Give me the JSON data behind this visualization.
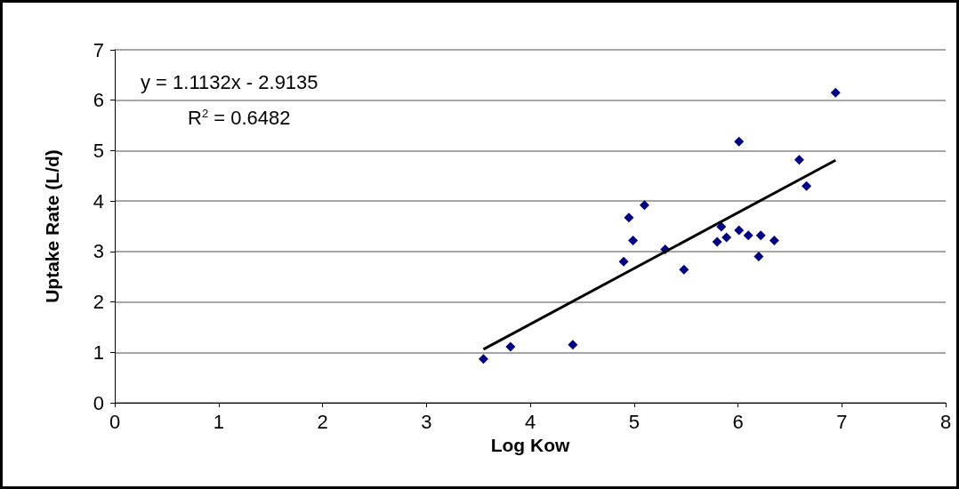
{
  "chart_data": {
    "type": "scatter",
    "xlabel": "Log Kow",
    "ylabel": "Uptake Rate (L/d)",
    "annotations": [
      "y = 1.1132x - 2.9135",
      "R$^{2}$ = 0.6482"
    ],
    "series": [
      {
        "color": "#000080",
        "marker": "diamond",
        "x": [
          3.55,
          3.81,
          4.41,
          4.9,
          4.95,
          4.99,
          5.1,
          5.3,
          5.48,
          5.8,
          5.84,
          5.89,
          6.01,
          6.01,
          6.1,
          6.22,
          6.2,
          6.35,
          6.59,
          6.66,
          6.94
        ],
        "values": [
          0.87,
          1.11,
          1.15,
          2.8,
          3.67,
          3.22,
          3.92,
          3.04,
          2.64,
          3.19,
          3.49,
          3.28,
          5.18,
          3.42,
          3.32,
          3.32,
          2.9,
          3.22,
          4.82,
          4.3,
          6.15
        ]
      },
      {
        "type": "line",
        "color": "#000000",
        "marker": "none",
        "x": [
          3.55,
          6.94
        ],
        "values": [
          1.06,
          4.81
        ]
      }
    ],
    "xlim": [
      0,
      8
    ],
    "xticks": [
      0,
      1,
      2,
      3,
      4,
      5,
      6,
      7,
      8
    ],
    "ylim": [
      0,
      7
    ],
    "yticks": [
      0,
      1,
      2,
      3,
      4,
      5,
      6,
      7
    ],
    "grid": "y"
  }
}
